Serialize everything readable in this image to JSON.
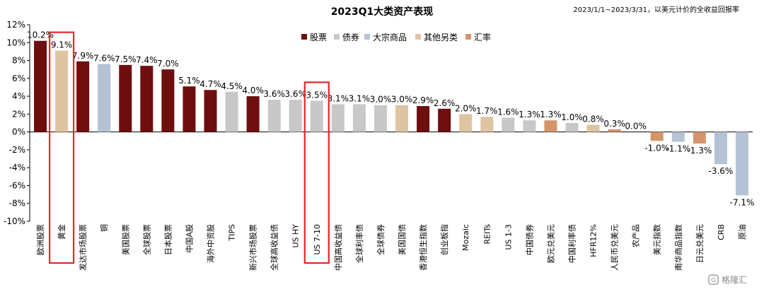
{
  "chart_data": {
    "type": "bar",
    "title": "2023Q1大类资产表现",
    "subtitle": "2023/1/1~2023/3/31，以美元计价的全收益回报率",
    "ylim": [
      -10,
      12
    ],
    "yticks": [
      12,
      10,
      8,
      6,
      4,
      2,
      0,
      -2,
      -4,
      -6,
      -8,
      -10
    ],
    "ytick_labels": [
      "12%",
      "10%",
      "8%",
      "6%",
      "4%",
      "2%",
      "0%",
      "-2%",
      "-4%",
      "-6%",
      "-8%",
      "-10%"
    ],
    "legend": [
      {
        "key": "equity",
        "label": "股票",
        "color": "#6E0E0E"
      },
      {
        "key": "bond",
        "label": "债券",
        "color": "#C8C8C8"
      },
      {
        "key": "commodity",
        "label": "大宗商品",
        "color": "#B4C2D4"
      },
      {
        "key": "alternative",
        "label": "其他另类",
        "color": "#DFC4A1"
      },
      {
        "key": "fx",
        "label": "汇率",
        "color": "#D4956A"
      }
    ],
    "categories": [
      "欧洲股票",
      "黄金",
      "发达市场股票",
      "铜",
      "美国股票",
      "全球股票",
      "日本股票",
      "中国A股",
      "海外中资股",
      "TIPS",
      "新兴市场股票",
      "全球高收益债",
      "US HY",
      "US 7-10",
      "中国高收益债",
      "全球利率债",
      "全球债券",
      "美国国债",
      "香港恒生指数",
      "创业板指",
      "Mozaic",
      "REITs",
      "US 1-3",
      "中国债券",
      "欧元兑美元",
      "中国利率债",
      "HFR12%",
      "人民币兑美元",
      "农产品",
      "美元指数",
      "南华商品指数",
      "日元兑美元",
      "CRB",
      "原油"
    ],
    "values": [
      10.2,
      9.1,
      7.9,
      7.6,
      7.5,
      7.4,
      7.0,
      5.1,
      4.7,
      4.5,
      4.0,
      3.6,
      3.6,
      3.5,
      3.1,
      3.1,
      3.0,
      3.0,
      2.9,
      2.6,
      2.0,
      1.7,
      1.6,
      1.3,
      1.3,
      1.0,
      0.8,
      0.3,
      0.0,
      -1.0,
      -1.1,
      -1.3,
      -3.6,
      -7.1
    ],
    "value_labels": [
      "10.2%",
      "9.1%",
      "7.9%",
      "7.6%",
      "7.5%",
      "7.4%",
      "7.0%",
      "5.1%",
      "4.7%",
      "4.5%",
      "4.0%",
      "3.6%",
      "3.6%",
      "3.5%",
      "3.1%",
      "3.1%",
      "3.0%",
      "3.0%",
      "2.9%",
      "2.6%",
      "2.0%",
      "1.7%",
      "1.6%",
      "1.3%",
      "1.3%",
      "1.0%",
      "0.8%",
      "0.3%",
      "0.0%",
      "-1.0%",
      "-1.1%",
      "-1.3%",
      "-3.6%",
      "-7.1%"
    ],
    "asset_class": [
      "equity",
      "alternative",
      "equity",
      "commodity",
      "equity",
      "equity",
      "equity",
      "equity",
      "equity",
      "bond",
      "equity",
      "bond",
      "bond",
      "bond",
      "bond",
      "bond",
      "bond",
      "alternative",
      "equity",
      "equity",
      "alternative",
      "alternative",
      "bond",
      "bond",
      "fx",
      "bond",
      "alternative",
      "fx",
      "commodity",
      "fx",
      "commodity",
      "fx",
      "commodity",
      "commodity"
    ],
    "highlighted_categories": [
      "黄金",
      "US 7-10"
    ],
    "highlight_color": "#E8262B",
    "grid": false,
    "legend_position": "top"
  },
  "watermark": {
    "text": "格隆汇"
  }
}
